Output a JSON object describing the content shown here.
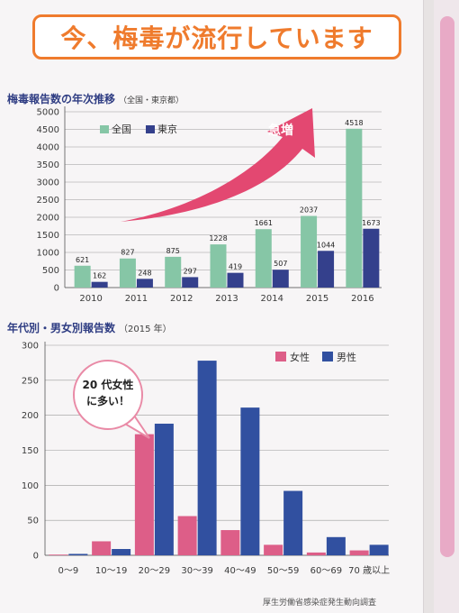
{
  "title": "今、梅毒が流行しています",
  "chart_data": [
    {
      "type": "bar",
      "title": "梅毒報告数の年次推移",
      "subtitle": "（全国・東京都）",
      "categories": [
        "2010",
        "2011",
        "2012",
        "2013",
        "2014",
        "2015",
        "2016"
      ],
      "series": [
        {
          "name": "全国",
          "color": "#86c6a6",
          "values": [
            621,
            827,
            875,
            1228,
            1661,
            2037,
            4518
          ]
        },
        {
          "name": "東京",
          "color": "#34408c",
          "values": [
            162,
            248,
            297,
            419,
            507,
            1044,
            1673
          ]
        }
      ],
      "ylim": [
        0,
        5000
      ],
      "yticks": [
        0,
        500,
        1000,
        1500,
        2000,
        2500,
        3000,
        3500,
        4000,
        4500,
        5000
      ],
      "annotation": "急増",
      "legend_position": "top-left",
      "grid": true
    },
    {
      "type": "bar",
      "title": "年代別・男女別報告数",
      "subtitle": "（2015 年）",
      "categories": [
        "0～9",
        "10～19",
        "20～29",
        "30～39",
        "40～49",
        "50～59",
        "60～69",
        "70 歳以上"
      ],
      "series": [
        {
          "name": "女性",
          "color": "#dd5e88",
          "values": [
            1,
            20,
            173,
            56,
            36,
            15,
            4,
            7
          ]
        },
        {
          "name": "男性",
          "color": "#3150a0",
          "values": [
            2,
            9,
            188,
            278,
            211,
            92,
            26,
            15
          ]
        }
      ],
      "ylim": [
        0,
        300
      ],
      "yticks": [
        0,
        50,
        100,
        150,
        200,
        250,
        300
      ],
      "annotation": "20 代女性\nに多い！",
      "legend_position": "top-right",
      "grid": true
    }
  ],
  "source": "厚生労働省感染症発生動向調査"
}
